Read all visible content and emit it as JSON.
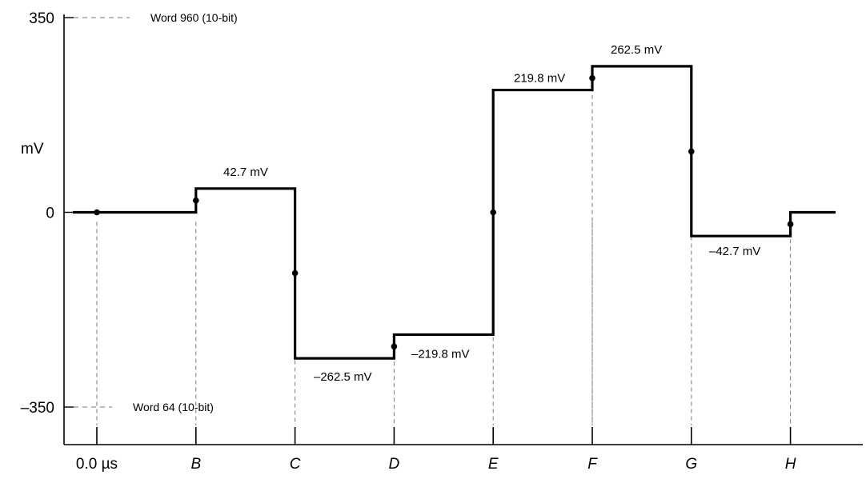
{
  "chart_data": {
    "type": "line",
    "title": "",
    "ylabel": "mV",
    "xlabel": "",
    "ylim": [
      -350,
      350
    ],
    "y_ticks": [
      {
        "value": 350,
        "label": "350"
      },
      {
        "value": 0,
        "label": "0"
      },
      {
        "value": -350,
        "label": "–350"
      }
    ],
    "x_ticks": [
      {
        "value": 0,
        "label": "0.0 µs",
        "italic": false
      },
      {
        "value": 1,
        "label": "B",
        "italic": true
      },
      {
        "value": 2,
        "label": "C",
        "italic": true
      },
      {
        "value": 3,
        "label": "D",
        "italic": true
      },
      {
        "value": 4,
        "label": "E",
        "italic": true
      },
      {
        "value": 5,
        "label": "F",
        "italic": true
      },
      {
        "value": 6,
        "label": "G",
        "italic": true
      },
      {
        "value": 7,
        "label": "H",
        "italic": true
      }
    ],
    "series": [
      {
        "step": "mid",
        "x": [
          0,
          1,
          2,
          3,
          4,
          5,
          6,
          7
        ],
        "y": [
          0,
          21.35,
          -109.4,
          -241.15,
          0,
          241.15,
          109.4,
          -21.35
        ]
      }
    ],
    "step_levels": [
      {
        "label": "42.7 mV",
        "value": 42.7
      },
      {
        "label": "–262.5 mV",
        "value": -262.5
      },
      {
        "label": "–219.8 mV",
        "value": -219.8
      },
      {
        "label": "219.8 mV",
        "value": 219.8
      },
      {
        "label": "262.5 mV",
        "value": 262.5
      },
      {
        "label": "–42.7 mV",
        "value": -42.7
      }
    ],
    "reference_lines": [
      {
        "value": 350,
        "label": "Word 960 (10-bit)"
      },
      {
        "value": -350,
        "label": "Word 64 (10-bit)"
      }
    ],
    "grid": false
  }
}
